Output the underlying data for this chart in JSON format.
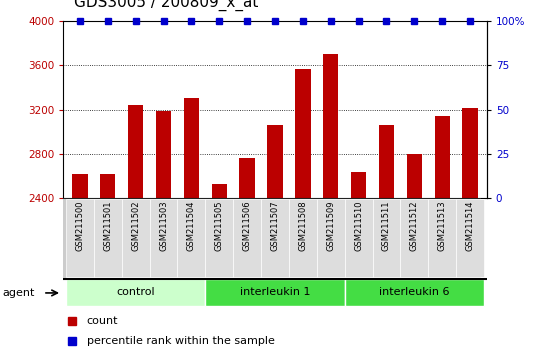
{
  "title": "GDS3005 / 200809_x_at",
  "samples": [
    "GSM211500",
    "GSM211501",
    "GSM211502",
    "GSM211503",
    "GSM211504",
    "GSM211505",
    "GSM211506",
    "GSM211507",
    "GSM211508",
    "GSM211509",
    "GSM211510",
    "GSM211511",
    "GSM211512",
    "GSM211513",
    "GSM211514"
  ],
  "counts": [
    2620,
    2615,
    3240,
    3185,
    3310,
    2530,
    2760,
    3060,
    3565,
    3700,
    2640,
    3060,
    2800,
    3140,
    3215
  ],
  "groups": [
    {
      "label": "control",
      "start": 0,
      "end": 5,
      "color": "#ccffcc"
    },
    {
      "label": "interleukin 1",
      "start": 5,
      "end": 10,
      "color": "#44dd44"
    },
    {
      "label": "interleukin 6",
      "start": 10,
      "end": 15,
      "color": "#44dd44"
    }
  ],
  "bar_color": "#bb0000",
  "dot_color": "#0000cc",
  "ylim_left": [
    2400,
    4000
  ],
  "ylim_right": [
    0,
    100
  ],
  "yticks_left": [
    2400,
    2800,
    3200,
    3600,
    4000
  ],
  "yticks_right": [
    0,
    25,
    50,
    75,
    100
  ],
  "ytick_right_labels": [
    "0",
    "25",
    "50",
    "75",
    "100%"
  ],
  "group_label": "agent",
  "legend_count": "count",
  "legend_percentile": "percentile rank within the sample",
  "title_fontsize": 11,
  "tick_fontsize": 7.5,
  "group_fontsize": 8,
  "legend_fontsize": 8
}
